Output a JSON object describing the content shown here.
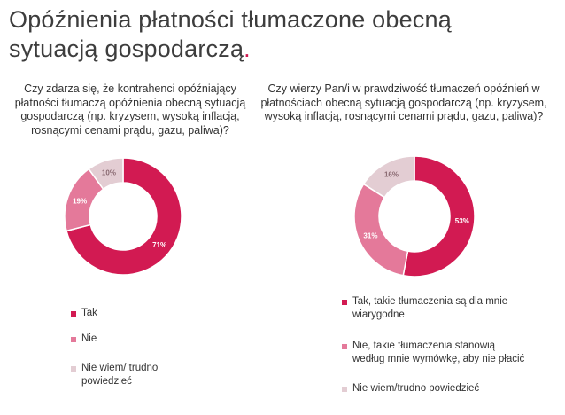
{
  "title": {
    "text": "Opóźnienia płatności tłumaczone obecną sytuacją gospodarczą",
    "dot": "."
  },
  "colors": {
    "accent": "#d21a52",
    "medium": "#e4799a",
    "light": "#e3cdd3"
  },
  "chart_data": [
    {
      "type": "pie",
      "title": "Czy zdarza się, że kontrahenci opóźniający płatności tłumaczą opóźnienia obecną sytuacją gospodarczą (np. kryzysem, wysoką inflacją, rosnącymi cenami prądu, gazu, paliwa)?",
      "categories": [
        "Tak",
        "Nie",
        "Nie wiem/ trudno powiedzieć"
      ],
      "values": [
        71,
        19,
        10
      ],
      "labels": [
        "71%",
        "19%",
        "10%"
      ],
      "legend_position": "bottom-left"
    },
    {
      "type": "pie",
      "title": "Czy wierzy Pan/i w prawdziwość tłumaczeń opóźnień w płatnościach obecną sytuacją gospodarczą (np. kryzysem, wysoką inflacją, rosnącymi cenami prądu, gazu, paliwa)?",
      "categories": [
        "Tak, takie tłumaczenia są dla mnie wiarygodne",
        "Nie, takie tłumaczenia stanowią według mnie wymówkę, aby nie płacić",
        "Nie wiem/trudno powiedzieć"
      ],
      "values": [
        53,
        31,
        16
      ],
      "labels": [
        "53%",
        "31%",
        "16%"
      ],
      "legend_position": "bottom-left"
    }
  ]
}
